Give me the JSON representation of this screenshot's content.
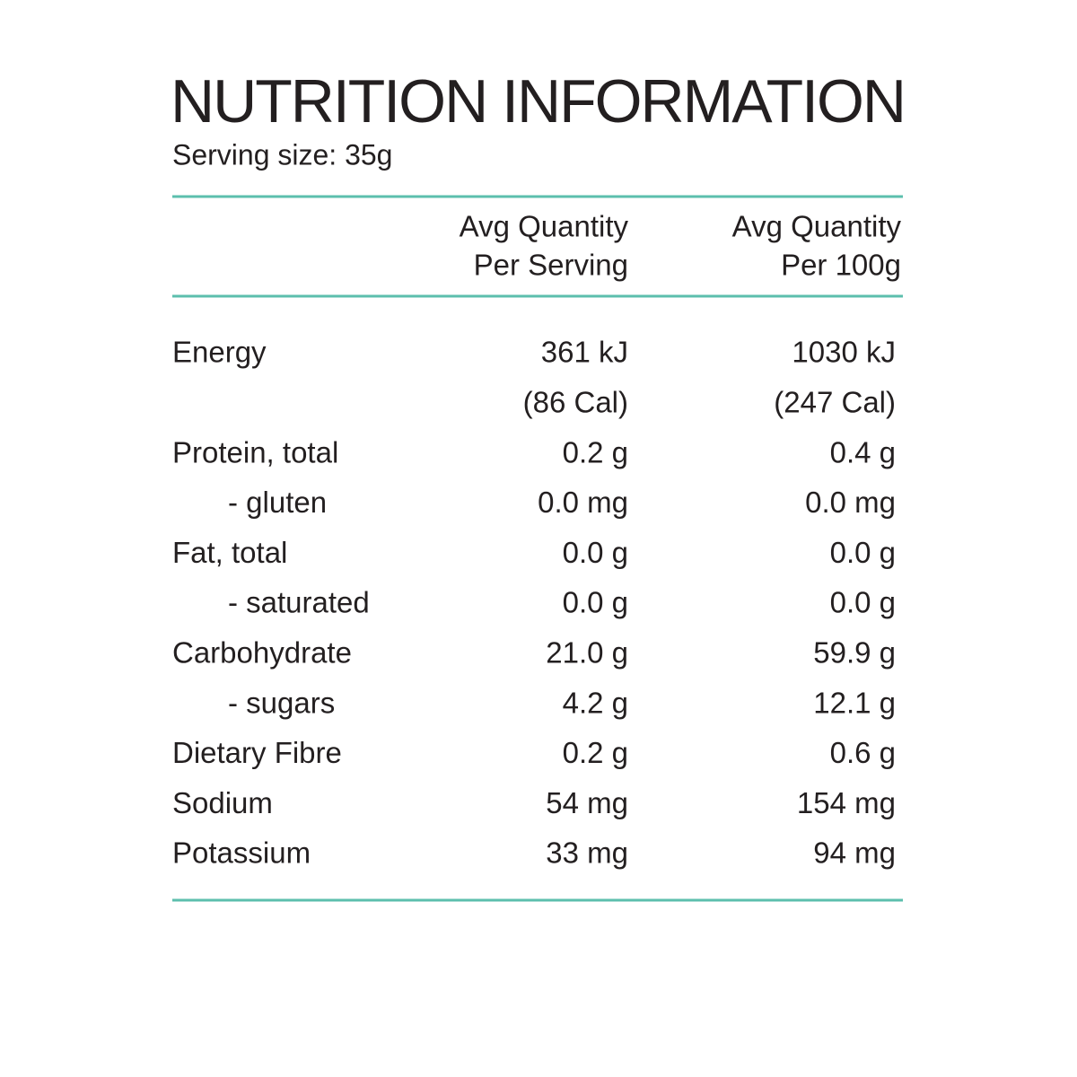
{
  "header": {
    "title": "NUTRITION INFORMATION",
    "serving": "Serving size: 35g"
  },
  "table": {
    "columns": [
      [
        "Avg Quantity",
        "Per Serving"
      ],
      [
        "Avg Quantity",
        "Per 100g"
      ]
    ],
    "rows": [
      [
        "Energy",
        "361 kJ",
        "1030 kJ"
      ],
      [
        null,
        "(86 Cal)",
        "(247 Cal)"
      ],
      [
        "Protein, total",
        "0.2 g",
        "0.4 g"
      ],
      [
        "- gluten",
        "0.0 mg",
        "0.0 mg"
      ],
      [
        "Fat, total",
        "0.0 g",
        "0.0 g"
      ],
      [
        "- saturated",
        "0.0 g",
        "0.0 g"
      ],
      [
        "Carbohydrate",
        "21.0 g",
        "59.9 g"
      ],
      [
        "- sugars",
        "4.2 g",
        "12.1 g"
      ],
      [
        "Dietary Fibre",
        "0.2 g",
        "0.6 g"
      ],
      [
        "Sodium",
        "54 mg",
        "154 mg"
      ],
      [
        "Potassium",
        "33 mg",
        "94 mg"
      ]
    ]
  }
}
